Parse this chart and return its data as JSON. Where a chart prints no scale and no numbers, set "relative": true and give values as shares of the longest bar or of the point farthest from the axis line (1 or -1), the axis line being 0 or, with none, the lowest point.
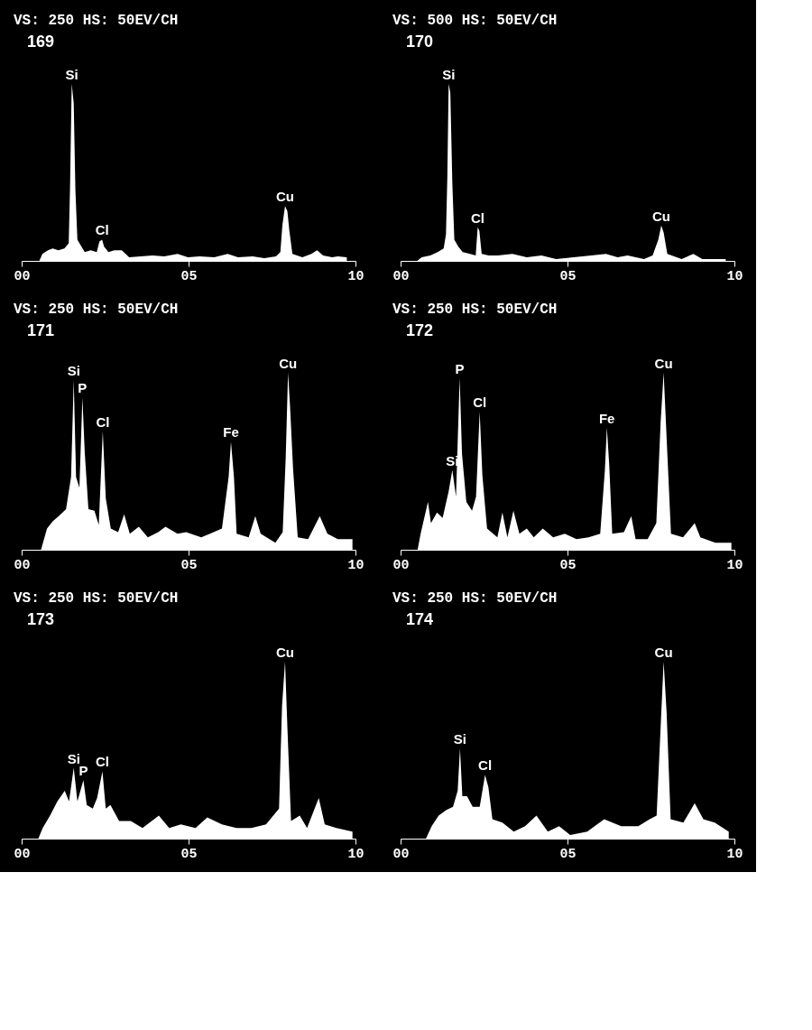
{
  "chart_data": [
    {
      "type": "area",
      "title": "VS: 250   HS: 50EV/CH",
      "relative": true,
      "xlim": [
        0,
        10
      ],
      "xticks": [
        {
          "value": 0,
          "label": "00"
        },
        {
          "value": 5,
          "label": "05"
        },
        {
          "value": 10,
          "label": "10"
        }
      ],
      "x": [
        0.53,
        0.62,
        0.79,
        0.93,
        1.1,
        1.28,
        1.41,
        1.45,
        1.5,
        1.56,
        1.61,
        1.67,
        1.76,
        1.89,
        2.07,
        2.25,
        2.33,
        2.41,
        2.47,
        2.6,
        2.78,
        3.0,
        3.22,
        3.57,
        3.92,
        4.27,
        4.67,
        4.98,
        5.33,
        5.77,
        6.17,
        6.48,
        6.92,
        7.27,
        7.62,
        7.75,
        7.81,
        7.89,
        7.96,
        8.02,
        8.11,
        8.41,
        8.68,
        8.85,
        9.03,
        9.3,
        9.47,
        9.74
      ],
      "series": [
        {
          "color": "#ffffff",
          "values": [
            0,
            0.04,
            0.06,
            0.07,
            0.06,
            0.07,
            0.1,
            0.42,
            1.0,
            0.89,
            0.4,
            0.12,
            0.09,
            0.05,
            0.06,
            0.05,
            0.11,
            0.12,
            0.08,
            0.05,
            0.06,
            0.06,
            0.02,
            0.025,
            0.03,
            0.025,
            0.04,
            0.02,
            0.025,
            0.02,
            0.04,
            0.02,
            0.025,
            0.015,
            0.025,
            0.05,
            0.2,
            0.31,
            0.28,
            0.17,
            0.04,
            0.02,
            0.04,
            0.06,
            0.03,
            0.02,
            0.025,
            0.02
          ]
        }
      ],
      "annotations": [
        "169",
        {
          "text": "Si",
          "x": 1.5,
          "y": 1.0
        },
        {
          "text": "Cl",
          "x": 2.41,
          "y": 0.12
        },
        {
          "text": "Cu",
          "x": 7.89,
          "y": 0.31
        }
      ]
    },
    {
      "type": "area",
      "title": "VS: 500   HS: 50EV/CH",
      "relative": true,
      "xlim": [
        0,
        10
      ],
      "xticks": [
        {
          "value": 0,
          "label": "00"
        },
        {
          "value": 5,
          "label": "05"
        },
        {
          "value": 10,
          "label": "10"
        }
      ],
      "x": [
        0.5,
        0.63,
        0.89,
        1.11,
        1.29,
        1.36,
        1.4,
        1.44,
        1.49,
        1.55,
        1.61,
        1.73,
        1.86,
        2.08,
        2.25,
        2.31,
        2.36,
        2.43,
        2.64,
        2.91,
        3.35,
        3.78,
        4.22,
        4.66,
        5.18,
        5.71,
        6.15,
        6.5,
        6.8,
        7.29,
        7.55,
        7.72,
        7.81,
        7.88,
        7.99,
        8.42,
        8.77,
        9.04,
        9.47,
        9.74
      ],
      "series": [
        {
          "color": "#ffffff",
          "values": [
            0,
            0.02,
            0.03,
            0.05,
            0.07,
            0.15,
            0.47,
            1.0,
            0.95,
            0.44,
            0.12,
            0.08,
            0.05,
            0.04,
            0.03,
            0.19,
            0.17,
            0.04,
            0.03,
            0.03,
            0.04,
            0.02,
            0.03,
            0.01,
            0.02,
            0.03,
            0.04,
            0.02,
            0.03,
            0.01,
            0.03,
            0.12,
            0.2,
            0.16,
            0.04,
            0.01,
            0.04,
            0.01,
            0.01,
            0.01
          ]
        }
      ],
      "annotations": [
        "170",
        {
          "text": "Si",
          "x": 1.44,
          "y": 1.0
        },
        {
          "text": "Cl",
          "x": 2.31,
          "y": 0.19
        },
        {
          "text": "Cu",
          "x": 7.81,
          "y": 0.2
        }
      ]
    },
    {
      "type": "area",
      "title": "VS: 250   HS: 50EV/CH",
      "relative": true,
      "xlim": [
        0,
        10
      ],
      "xticks": [
        {
          "value": 0,
          "label": "00"
        },
        {
          "value": 5,
          "label": "05"
        },
        {
          "value": 10,
          "label": "10"
        }
      ],
      "x": [
        0.58,
        0.76,
        0.93,
        1.11,
        1.33,
        1.48,
        1.56,
        1.63,
        1.73,
        1.82,
        1.89,
        2.0,
        2.18,
        2.31,
        2.43,
        2.52,
        2.67,
        2.89,
        3.07,
        3.24,
        3.51,
        3.78,
        4.09,
        4.31,
        4.67,
        4.93,
        5.38,
        5.64,
        6.0,
        6.2,
        6.27,
        6.36,
        6.44,
        6.8,
        7.0,
        7.16,
        7.6,
        7.82,
        7.91,
        7.98,
        8.04,
        8.13,
        8.27,
        8.58,
        8.93,
        9.16,
        9.47,
        9.91
      ],
      "series": [
        {
          "color": "#ffffff",
          "values": [
            0,
            0.12,
            0.16,
            0.19,
            0.23,
            0.41,
            0.96,
            0.41,
            0.35,
            0.86,
            0.55,
            0.23,
            0.22,
            0.14,
            0.67,
            0.29,
            0.12,
            0.1,
            0.2,
            0.09,
            0.13,
            0.07,
            0.1,
            0.13,
            0.09,
            0.1,
            0.07,
            0.09,
            0.12,
            0.41,
            0.61,
            0.41,
            0.09,
            0.07,
            0.19,
            0.09,
            0.04,
            0.1,
            0.52,
            1.0,
            0.81,
            0.46,
            0.07,
            0.06,
            0.19,
            0.09,
            0.06,
            0.06
          ]
        }
      ],
      "annotations": [
        "171",
        {
          "text": "Si",
          "x": 1.56,
          "y": 0.96
        },
        {
          "text": "P",
          "x": 1.82,
          "y": 0.86
        },
        {
          "text": "Cl",
          "x": 2.43,
          "y": 0.67
        },
        {
          "text": "Fe",
          "x": 6.27,
          "y": 0.61
        },
        {
          "text": "Cu",
          "x": 7.98,
          "y": 1.0
        }
      ]
    },
    {
      "type": "area",
      "title": "VS: 250   HS: 50EV/CH",
      "relative": true,
      "xlim": [
        0,
        10
      ],
      "xticks": [
        {
          "value": 0,
          "label": "00"
        },
        {
          "value": 5,
          "label": "05"
        },
        {
          "value": 10,
          "label": "10"
        }
      ],
      "x": [
        0.51,
        0.6,
        0.82,
        0.91,
        1.09,
        1.26,
        1.44,
        1.55,
        1.66,
        1.77,
        1.84,
        1.97,
        2.14,
        2.26,
        2.37,
        2.45,
        2.59,
        2.9,
        3.05,
        3.2,
        3.38,
        3.56,
        3.78,
        3.99,
        4.26,
        4.57,
        4.92,
        5.27,
        5.63,
        5.98,
        6.12,
        6.18,
        6.25,
        6.34,
        6.69,
        6.91,
        7.04,
        7.4,
        7.66,
        7.79,
        7.88,
        7.97,
        8.1,
        8.46,
        8.81,
        8.98,
        9.43,
        9.91
      ],
      "series": [
        {
          "color": "#ffffff",
          "values": [
            0,
            0.09,
            0.27,
            0.15,
            0.21,
            0.18,
            0.33,
            0.45,
            0.3,
            0.97,
            0.54,
            0.27,
            0.22,
            0.3,
            0.78,
            0.42,
            0.12,
            0.07,
            0.21,
            0.07,
            0.22,
            0.09,
            0.12,
            0.07,
            0.12,
            0.07,
            0.09,
            0.06,
            0.07,
            0.09,
            0.45,
            0.69,
            0.48,
            0.09,
            0.1,
            0.19,
            0.06,
            0.06,
            0.15,
            0.72,
            1.0,
            0.63,
            0.09,
            0.07,
            0.15,
            0.07,
            0.04,
            0.04
          ]
        }
      ],
      "annotations": [
        "172",
        {
          "text": "Si",
          "x": 1.55,
          "y": 0.45
        },
        {
          "text": "P",
          "x": 1.77,
          "y": 0.97
        },
        {
          "text": "Cl",
          "x": 2.37,
          "y": 0.78
        },
        {
          "text": "Fe",
          "x": 6.18,
          "y": 0.69
        },
        {
          "text": "Cu",
          "x": 7.88,
          "y": 1.0
        }
      ]
    },
    {
      "type": "area",
      "title": "VS: 250   HS: 50EV/CH",
      "relative": true,
      "xlim": [
        0,
        10
      ],
      "xticks": [
        {
          "value": 0,
          "label": "00"
        },
        {
          "value": 5,
          "label": "05"
        },
        {
          "value": 10,
          "label": "10"
        }
      ],
      "x": [
        0.5,
        0.63,
        0.85,
        1.07,
        1.29,
        1.42,
        1.56,
        1.67,
        1.85,
        1.95,
        2.13,
        2.26,
        2.42,
        2.52,
        2.66,
        2.92,
        3.27,
        3.62,
        4.11,
        4.42,
        4.77,
        5.21,
        5.56,
        6.0,
        6.44,
        6.88,
        7.32,
        7.71,
        7.8,
        7.89,
        7.96,
        8.07,
        8.33,
        8.55,
        8.9,
        9.08,
        9.43,
        9.91
      ],
      "series": [
        {
          "color": "#ffffff",
          "values": [
            0,
            0.06,
            0.13,
            0.21,
            0.27,
            0.21,
            0.4,
            0.21,
            0.33,
            0.19,
            0.17,
            0.23,
            0.38,
            0.17,
            0.19,
            0.1,
            0.1,
            0.06,
            0.13,
            0.06,
            0.08,
            0.06,
            0.12,
            0.08,
            0.06,
            0.06,
            0.08,
            0.17,
            0.75,
            1.0,
            0.63,
            0.1,
            0.13,
            0.06,
            0.23,
            0.08,
            0.06,
            0.04
          ]
        }
      ],
      "annotations": [
        "173",
        {
          "text": "Si",
          "x": 1.56,
          "y": 0.4
        },
        {
          "text": "P",
          "x": 1.85,
          "y": 0.33
        },
        {
          "text": "Cl",
          "x": 2.42,
          "y": 0.38
        },
        {
          "text": "Cu",
          "x": 7.89,
          "y": 1.0
        }
      ]
    },
    {
      "type": "area",
      "title": "VS: 250   HS: 50EV/CH",
      "relative": true,
      "xlim": [
        0,
        10
      ],
      "xticks": [
        {
          "value": 0,
          "label": "00"
        },
        {
          "value": 5,
          "label": "05"
        },
        {
          "value": 10,
          "label": "10"
        }
      ],
      "x": [
        0.76,
        0.93,
        1.14,
        1.36,
        1.57,
        1.71,
        1.78,
        1.85,
        1.99,
        2.16,
        2.37,
        2.53,
        2.63,
        2.75,
        3.05,
        3.39,
        3.73,
        4.07,
        4.41,
        4.75,
        5.08,
        5.59,
        6.1,
        6.61,
        7.12,
        7.46,
        7.67,
        7.8,
        7.88,
        7.97,
        8.09,
        8.47,
        8.81,
        9.07,
        9.41,
        9.83
      ],
      "series": [
        {
          "color": "#ffffff",
          "values": [
            0,
            0.07,
            0.13,
            0.16,
            0.18,
            0.27,
            0.51,
            0.24,
            0.24,
            0.18,
            0.18,
            0.36,
            0.29,
            0.11,
            0.09,
            0.04,
            0.07,
            0.13,
            0.04,
            0.07,
            0.02,
            0.04,
            0.11,
            0.07,
            0.07,
            0.11,
            0.13,
            0.67,
            1.0,
            0.71,
            0.11,
            0.09,
            0.2,
            0.11,
            0.09,
            0.04
          ]
        }
      ],
      "annotations": [
        "174",
        {
          "text": "Si",
          "x": 1.78,
          "y": 0.51
        },
        {
          "text": "Cl",
          "x": 2.53,
          "y": 0.36
        },
        {
          "text": "Cu",
          "x": 7.88,
          "y": 1.0
        }
      ]
    }
  ]
}
